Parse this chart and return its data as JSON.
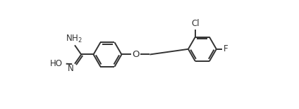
{
  "bg_color": "#ffffff",
  "line_color": "#333333",
  "line_width": 1.4,
  "font_size": 8.5,
  "fig_width": 4.24,
  "fig_height": 1.55,
  "dpi": 100,
  "xlim": [
    0.0,
    9.5
  ],
  "ylim": [
    -0.5,
    3.5
  ]
}
